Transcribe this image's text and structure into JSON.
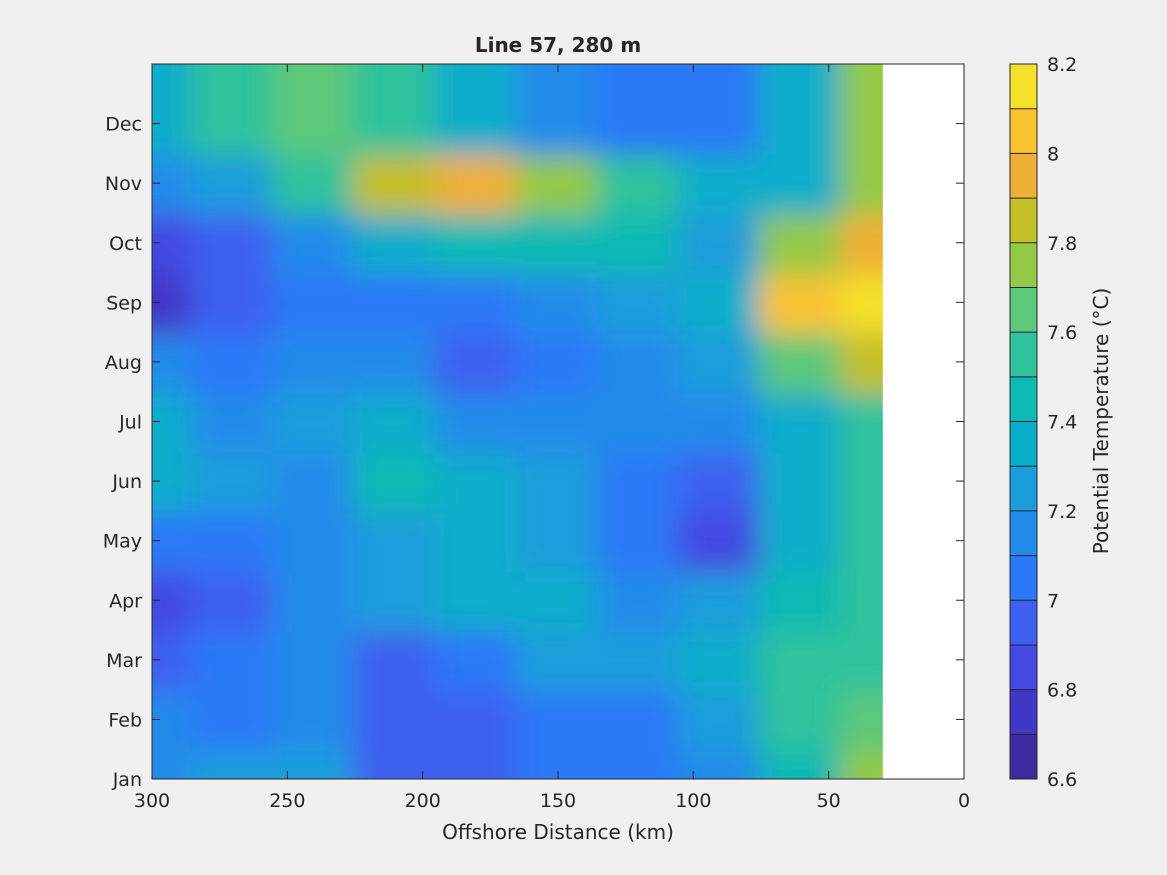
{
  "chart_data": {
    "type": "heatmap",
    "subtype": "filled-contour",
    "title": "Line 57, 280 m",
    "xlabel": "Offshore Distance (km)",
    "ylabel": "",
    "xlim": [
      300,
      0
    ],
    "x_reversed": true,
    "xticks": [
      300,
      250,
      200,
      150,
      100,
      50,
      0
    ],
    "yticks": [
      "Jan",
      "Feb",
      "Mar",
      "Apr",
      "May",
      "Jun",
      "Jul",
      "Aug",
      "Sep",
      "Oct",
      "Nov",
      "Dec"
    ],
    "data_x_extent_km": [
      300,
      30
    ],
    "colorbar": {
      "label": "Potential Temperature (°C)",
      "limits": [
        6.6,
        8.2
      ],
      "tick_labels": [
        "6.6",
        "6.8",
        "7",
        "7.2",
        "7.4",
        "7.6",
        "7.8",
        "8",
        "8.2"
      ],
      "levels": [
        6.6,
        6.7,
        6.8,
        6.9,
        7.0,
        7.1,
        7.2,
        7.3,
        7.4,
        7.5,
        7.6,
        7.7,
        7.8,
        7.9,
        8.0,
        8.1,
        8.2
      ],
      "colors": [
        "#3e2b9f",
        "#4237c7",
        "#4349e1",
        "#3d60f0",
        "#2b79f7",
        "#218bea",
        "#1b9ddc",
        "#08adcb",
        "#0cb9b4",
        "#2fc29d",
        "#5bc87a",
        "#93c946",
        "#c4be27",
        "#eeaf36",
        "#f9c331",
        "#f5e02c"
      ]
    },
    "field_samples": {
      "note": "approximate potential temperature (°C) read from contours",
      "x_km": [
        300,
        270,
        240,
        210,
        180,
        150,
        120,
        90,
        60,
        30
      ],
      "months": [
        "Jan",
        "Feb",
        "Mar",
        "Apr",
        "May",
        "Jun",
        "Jul",
        "Aug",
        "Sep",
        "Oct",
        "Nov",
        "Dec"
      ],
      "values": [
        [
          7.15,
          7.25,
          7.2,
          6.95,
          6.95,
          7.0,
          7.05,
          7.15,
          7.45,
          7.75
        ],
        [
          7.1,
          7.05,
          7.15,
          6.95,
          6.95,
          7.0,
          7.05,
          7.25,
          7.55,
          7.65
        ],
        [
          6.9,
          7.0,
          7.15,
          6.95,
          7.05,
          7.2,
          7.2,
          7.35,
          7.5,
          7.55
        ],
        [
          6.85,
          6.95,
          7.15,
          7.2,
          7.35,
          7.3,
          7.15,
          7.2,
          7.45,
          7.55
        ],
        [
          7.05,
          7.0,
          7.1,
          7.25,
          7.3,
          7.25,
          7.0,
          6.85,
          7.3,
          7.55
        ],
        [
          7.35,
          7.2,
          7.15,
          7.45,
          7.3,
          7.25,
          7.05,
          6.95,
          7.3,
          7.55
        ],
        [
          7.3,
          7.1,
          7.2,
          7.3,
          7.15,
          7.15,
          7.15,
          7.15,
          7.3,
          7.55
        ],
        [
          7.1,
          7.05,
          7.1,
          7.1,
          6.95,
          7.05,
          7.15,
          7.25,
          7.6,
          7.85
        ],
        [
          6.7,
          6.95,
          7.0,
          7.05,
          7.05,
          7.15,
          7.25,
          7.35,
          8.0,
          8.1
        ],
        [
          6.85,
          6.95,
          7.15,
          7.3,
          7.4,
          7.45,
          7.45,
          7.25,
          7.75,
          7.95
        ],
        [
          7.1,
          7.25,
          7.55,
          7.8,
          7.9,
          7.7,
          7.55,
          7.3,
          7.35,
          7.7
        ],
        [
          7.35,
          7.55,
          7.6,
          7.5,
          7.3,
          7.1,
          7.0,
          7.0,
          7.35,
          7.7
        ]
      ]
    },
    "masked_region": "no data between 30 km and 0 km (white)"
  }
}
